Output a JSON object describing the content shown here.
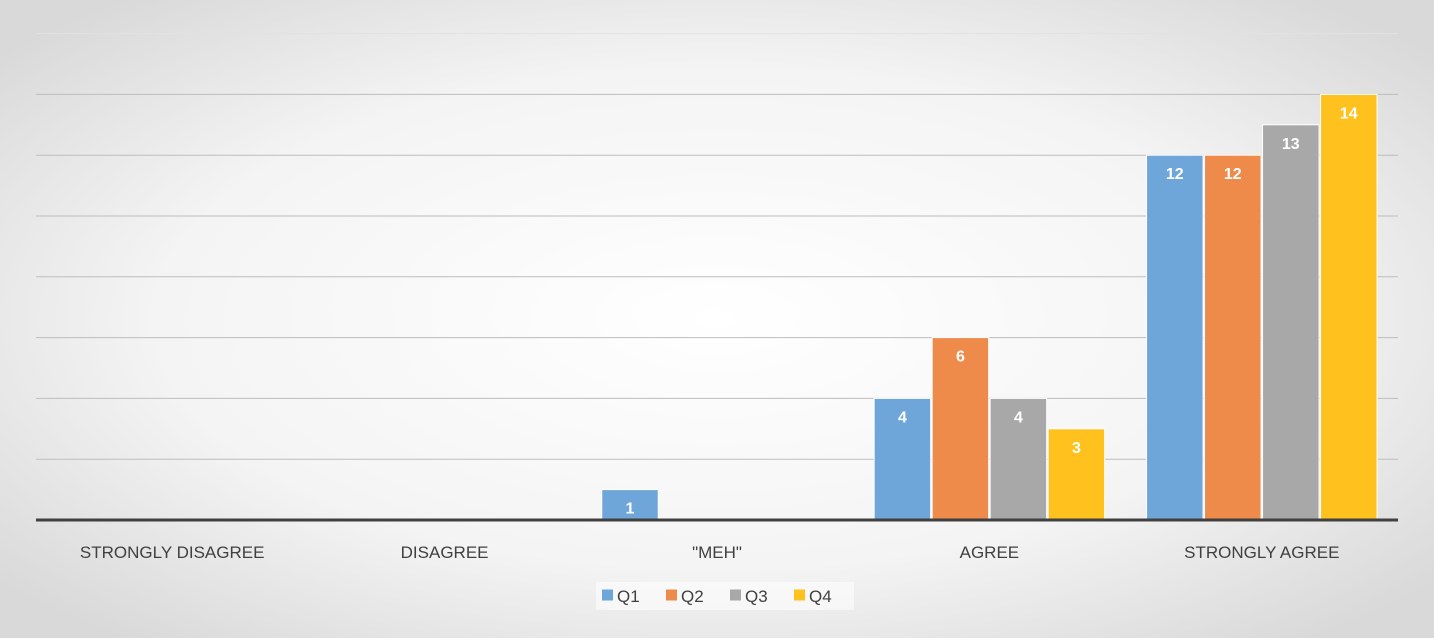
{
  "chart_data": {
    "type": "bar",
    "title": "",
    "xlabel": "",
    "ylabel": "",
    "categories": [
      "STRONGLY DISAGREE",
      "DISAGREE",
      "\"MEH\"",
      "AGREE",
      "STRONGLY AGREE"
    ],
    "series": [
      {
        "name": "Q1",
        "color": "#6FA6D9",
        "values": [
          0,
          0,
          1,
          4,
          12
        ]
      },
      {
        "name": "Q2",
        "color": "#EE8B4B",
        "values": [
          0,
          0,
          0,
          6,
          12
        ]
      },
      {
        "name": "Q3",
        "color": "#A8A8A8",
        "values": [
          0,
          0,
          0,
          4,
          13
        ]
      },
      {
        "name": "Q4",
        "color": "#FEC11E",
        "values": [
          0,
          0,
          0,
          3,
          14
        ]
      }
    ],
    "ylim": [
      0,
      16
    ],
    "grid": true,
    "legend_position": "bottom",
    "data_labels": true
  }
}
